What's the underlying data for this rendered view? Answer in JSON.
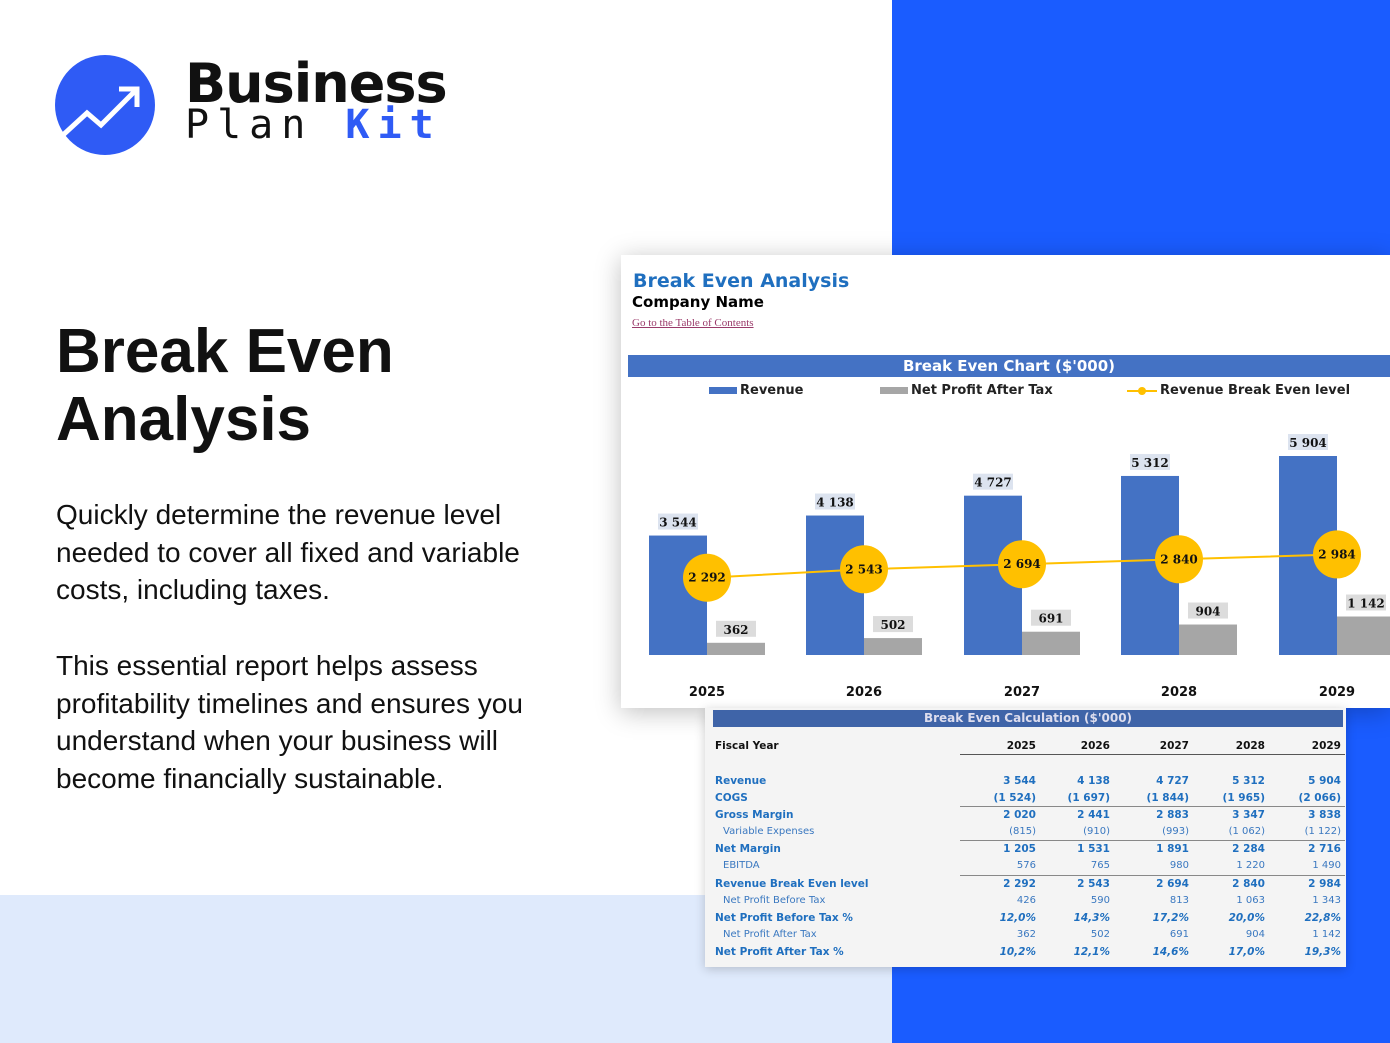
{
  "brand": {
    "line1": "Business",
    "line2a": "Plan ",
    "line2b": "Kit",
    "accent": "#2f5bf5"
  },
  "hero": {
    "title_line1": "Break Even",
    "title_line2": "Analysis",
    "p1": "Quickly determine the revenue level needed to cover all fixed and variable costs, including taxes.",
    "p2": "This essential report helps assess profitability timelines and ensures you understand when your business will become financially sustainable."
  },
  "sheet": {
    "title": "Break Even Analysis",
    "company": "Company Name",
    "toc_link": "Go to the Table of Contents"
  },
  "chart_data": {
    "type": "bar",
    "title": "Break Even Chart ($'000)",
    "categories": [
      "2025",
      "2026",
      "2027",
      "2028",
      "2029"
    ],
    "series": [
      {
        "name": "Revenue",
        "kind": "bar",
        "color": "#4472c4",
        "values": [
          3544,
          4138,
          4727,
          5312,
          5904
        ],
        "labels": [
          "3 544",
          "4 138",
          "4 727",
          "5 312",
          "5 904"
        ]
      },
      {
        "name": "Net Profit After Tax",
        "kind": "bar",
        "color": "#a6a6a6",
        "values": [
          362,
          502,
          691,
          904,
          1142
        ],
        "labels": [
          "362",
          "502",
          "691",
          "904",
          "1 142"
        ]
      },
      {
        "name": "Revenue Break Even level",
        "kind": "line",
        "color": "#ffc000",
        "values": [
          2292,
          2543,
          2694,
          2840,
          2984
        ],
        "labels": [
          "2 292",
          "2 543",
          "2 694",
          "2 840",
          "2 984"
        ]
      }
    ],
    "legend": "top",
    "grid": false
  },
  "calc": {
    "title": "Break Even Calculation ($'000)",
    "header": "Fiscal Year",
    "years": [
      "2025",
      "2026",
      "2027",
      "2028",
      "2029"
    ],
    "rows": [
      {
        "label": "Revenue",
        "style": "b",
        "values": [
          "3 544",
          "4 138",
          "4 727",
          "5 312",
          "5 904"
        ]
      },
      {
        "label": "COGS",
        "style": "",
        "values": [
          "(1 524)",
          "(1 697)",
          "(1 844)",
          "(1 965)",
          "(2 066)"
        ]
      },
      {
        "label": "Gross Margin",
        "style": "b",
        "values": [
          "2 020",
          "2 441",
          "2 883",
          "3 347",
          "3 838"
        ]
      },
      {
        "label": "Variable Expenses",
        "style": "sub",
        "values": [
          "(815)",
          "(910)",
          "(993)",
          "(1 062)",
          "(1 122)"
        ]
      },
      {
        "label": "Net Margin",
        "style": "b",
        "values": [
          "1 205",
          "1 531",
          "1 891",
          "2 284",
          "2 716"
        ]
      },
      {
        "label": "EBITDA",
        "style": "sub",
        "values": [
          "576",
          "765",
          "980",
          "1 220",
          "1 490"
        ]
      },
      {
        "label": "Revenue Break Even level",
        "style": "b",
        "values": [
          "2 292",
          "2 543",
          "2 694",
          "2 840",
          "2 984"
        ]
      },
      {
        "label": "Net Profit Before Tax",
        "style": "sub",
        "values": [
          "426",
          "590",
          "813",
          "1 063",
          "1 343"
        ]
      },
      {
        "label": "Net Profit Before Tax %",
        "style": "b",
        "pct": true,
        "values": [
          "12,0%",
          "14,3%",
          "17,2%",
          "20,0%",
          "22,8%"
        ]
      },
      {
        "label": "Net Profit After Tax",
        "style": "sub",
        "values": [
          "362",
          "502",
          "691",
          "904",
          "1 142"
        ]
      },
      {
        "label": "Net Profit After Tax %",
        "style": "b",
        "pct": true,
        "values": [
          "10,2%",
          "12,1%",
          "14,6%",
          "17,0%",
          "19,3%"
        ]
      }
    ]
  }
}
